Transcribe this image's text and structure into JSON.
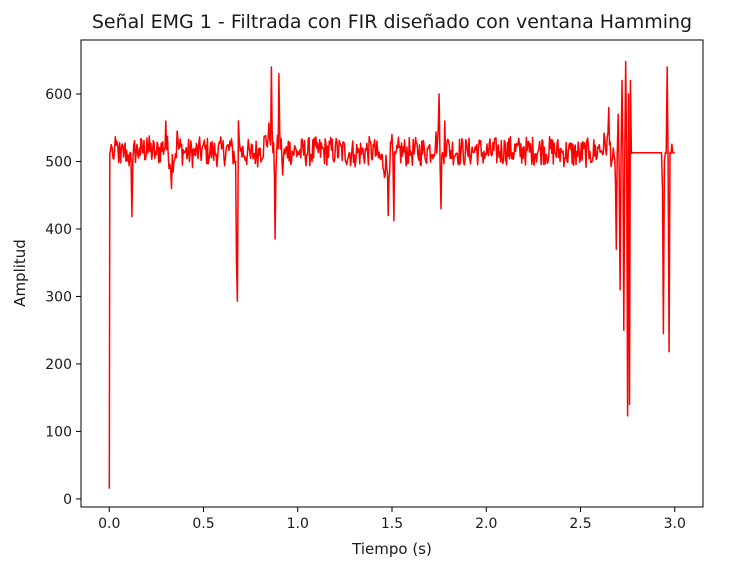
{
  "chart_data": {
    "type": "line",
    "title": "Señal EMG 1 - Filtrada con FIR diseñado con ventana Hamming",
    "xlabel": "Tiempo (s)",
    "ylabel": "Amplitud",
    "xlim": [
      -0.15,
      3.15
    ],
    "ylim": [
      -12,
      680
    ],
    "xticks": [
      0.0,
      0.5,
      1.0,
      1.5,
      2.0,
      2.5,
      3.0
    ],
    "xtick_labels": [
      "0.0",
      "0.5",
      "1.0",
      "1.5",
      "2.0",
      "2.5",
      "3.0"
    ],
    "yticks": [
      0,
      100,
      200,
      300,
      400,
      500,
      600
    ],
    "ytick_labels": [
      "0",
      "100",
      "200",
      "300",
      "400",
      "500",
      "600"
    ],
    "grid": false,
    "legend": "none",
    "series": [
      {
        "color": "#ff0000",
        "x": [
          0.0,
          0.003,
          0.01,
          0.02,
          0.04,
          0.06,
          0.08,
          0.1,
          0.12,
          0.125,
          0.13,
          0.16,
          0.2,
          0.25,
          0.3,
          0.33,
          0.36,
          0.4,
          0.45,
          0.5,
          0.55,
          0.6,
          0.64,
          0.67,
          0.675,
          0.68,
          0.685,
          0.7,
          0.75,
          0.8,
          0.86,
          0.88,
          0.9,
          0.92,
          0.95,
          1.0,
          1.1,
          1.2,
          1.3,
          1.4,
          1.48,
          1.5,
          1.51,
          1.53,
          1.6,
          1.7,
          1.75,
          1.76,
          1.78,
          1.8,
          1.9,
          1.95,
          2.0,
          2.1,
          2.2,
          2.3,
          2.4,
          2.5,
          2.55,
          2.6,
          2.65,
          2.69,
          2.7,
          2.71,
          2.72,
          2.73,
          2.74,
          2.75,
          2.755,
          2.76,
          2.765,
          2.77,
          2.775,
          2.78,
          2.79,
          2.85,
          2.9,
          2.93,
          2.94,
          2.95,
          2.96,
          2.97,
          2.975,
          2.98,
          2.99,
          3.0
        ],
        "y": [
          15,
          510,
          525,
          505,
          530,
          498,
          520,
          510,
          418,
          500,
          525,
          520,
          535,
          510,
          560,
          460,
          545,
          515,
          510,
          525,
          515,
          520,
          530,
          500,
          350,
          293,
          560,
          520,
          505,
          520,
          640,
          385,
          630,
          480,
          530,
          515,
          520,
          525,
          510,
          525,
          420,
          540,
          412,
          520,
          515,
          525,
          600,
          430,
          560,
          530,
          515,
          525,
          510,
          528,
          522,
          530,
          515,
          505,
          515,
          525,
          580,
          370,
          570,
          310,
          620,
          250,
          648,
          123,
          600,
          140,
          620,
          512,
          513,
          513,
          513,
          513,
          513,
          513,
          245,
          513,
          640,
          218,
          513,
          512,
          513,
          513
        ]
      }
    ]
  }
}
